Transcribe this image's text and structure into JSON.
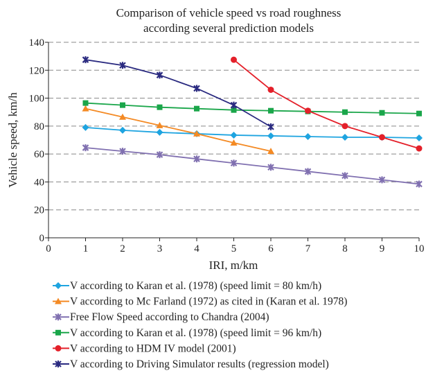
{
  "chart_data": {
    "type": "line",
    "title": [
      "Comparison of vehicle speed vs road roughness",
      "according several prediction models"
    ],
    "x_label": "IRI, m/km",
    "y_label": "Vehicle speed, km/h",
    "xlim": [
      0,
      10
    ],
    "xticks": [
      0,
      1,
      2,
      3,
      4,
      5,
      6,
      7,
      8,
      9,
      10
    ],
    "ylim": [
      0,
      140
    ],
    "yticks": [
      0,
      20,
      40,
      60,
      80,
      100,
      120,
      140
    ],
    "grid": true,
    "series": [
      {
        "name": "V according to Karan et al. (1978) (speed limit = 80 km/h)",
        "color": "#1ea4e0",
        "marker": "diamond",
        "x": [
          1,
          2,
          3,
          4,
          5,
          6,
          7,
          8,
          9,
          10
        ],
        "values": [
          79,
          77,
          75.5,
          74.5,
          73.5,
          73,
          72.5,
          72,
          72,
          71.5
        ]
      },
      {
        "name": "V according to Mc Farland (1972) as cited in (Karan et al. 1978)",
        "color": "#f48a24",
        "marker": "triangle",
        "x": [
          1,
          2,
          3,
          4,
          5,
          6
        ],
        "values": [
          92.5,
          86.5,
          80.5,
          74.5,
          68,
          62
        ]
      },
      {
        "name": "Free Flow Speed according to Chandra (2004)",
        "color": "#8070b0",
        "marker": "xstar",
        "x": [
          1,
          2,
          3,
          4,
          5,
          6,
          7,
          8,
          9,
          10
        ],
        "values": [
          64.5,
          62,
          59.5,
          56.5,
          53.5,
          50.5,
          47.5,
          44.5,
          41.5,
          38.5
        ]
      },
      {
        "name": "V according to Karan et al. (1978) (speed limit = 96 km/h)",
        "color": "#1aa64a",
        "marker": "square",
        "x": [
          1,
          2,
          3,
          4,
          5,
          6,
          7,
          8,
          9,
          10
        ],
        "values": [
          96.5,
          95,
          93.5,
          92.5,
          91.5,
          91,
          90.5,
          90,
          89.5,
          89
        ]
      },
      {
        "name": "V according to HDM IV model (2001)",
        "color": "#e4202a",
        "marker": "circle",
        "x": [
          5,
          6,
          7,
          8,
          9,
          10
        ],
        "values": [
          127.5,
          106,
          91,
          80,
          72,
          64
        ]
      },
      {
        "name": "V according to Driving Simulator results (regression model)",
        "color": "#2a2a80",
        "marker": "xstar",
        "x": [
          1,
          2,
          3,
          4,
          5,
          6
        ],
        "values": [
          127.5,
          123.5,
          116.5,
          107,
          95,
          79.5
        ]
      }
    ]
  }
}
